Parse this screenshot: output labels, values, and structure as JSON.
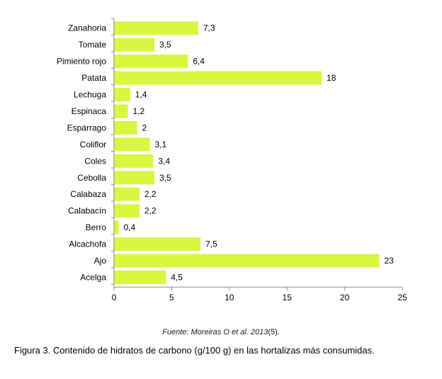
{
  "chart_data": {
    "type": "bar",
    "orientation": "horizontal",
    "categories": [
      "Zanahoria",
      "Tomate",
      "Pimiento rojo",
      "Patata",
      "Lechuga",
      "Espinaca",
      "Espárrago",
      "Coliflor",
      "Coles",
      "Cebolla",
      "Calabaza",
      "Calabacín",
      "Berro",
      "Alcachofa",
      "Ajo",
      "Acelga"
    ],
    "values": [
      7.3,
      3.5,
      6.4,
      18,
      1.4,
      1.2,
      2,
      3.1,
      3.4,
      3.5,
      2.2,
      2.2,
      0.4,
      7.5,
      23,
      4.5
    ],
    "value_labels": [
      "7,3",
      "3,5",
      "6,4",
      "18",
      "1,4",
      "1,2",
      "2",
      "3,1",
      "3,4",
      "3,5",
      "2,2",
      "2,2",
      "0,4",
      "7,5",
      "23",
      "4,5"
    ],
    "xlim": [
      0,
      25
    ],
    "x_ticks": [
      "0",
      "5",
      "10",
      "15",
      "20",
      "25"
    ],
    "grid": false,
    "bar_color": "#d9f53f",
    "axis_color": "#8c8c8c"
  },
  "source": {
    "text": "Fuente: Moreiras O et al. 2013",
    "ref": "(5)."
  },
  "caption": "Figura 3. Contenido de hidratos de carbono (g/100 g) en las hortalizas más consumidas."
}
